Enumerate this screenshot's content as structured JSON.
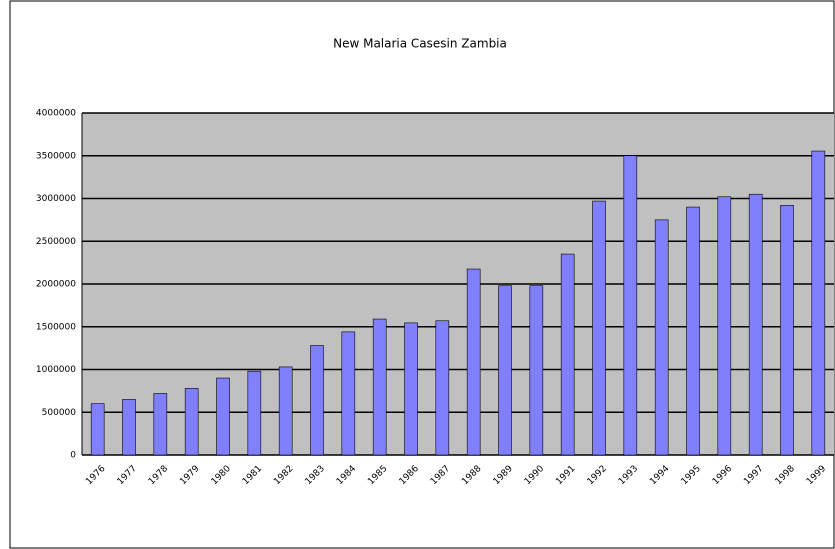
{
  "chart_data": {
    "type": "bar",
    "title": "New Malaria Casesin Zambia",
    "categories": [
      "1976",
      "1977",
      "1978",
      "1979",
      "1980",
      "1981",
      "1982",
      "1983",
      "1984",
      "1985",
      "1986",
      "1987",
      "1988",
      "1989",
      "1990",
      "1991",
      "1992",
      "1993",
      "1994",
      "1995",
      "1996",
      "1997",
      "1998",
      "1999"
    ],
    "values": [
      600000,
      650000,
      720000,
      780000,
      900000,
      980000,
      1030000,
      1280000,
      1440000,
      1590000,
      1545000,
      1570000,
      2175000,
      1980000,
      1980000,
      2350000,
      2970000,
      3500000,
      2750000,
      2900000,
      3020000,
      3050000,
      2920000,
      3555000
    ],
    "color": "#8080ff",
    "ylim": [
      0,
      4000000
    ],
    "yticks": [
      0,
      500000,
      1000000,
      1500000,
      2000000,
      2500000,
      3000000,
      3500000,
      4000000
    ],
    "grid": true
  }
}
